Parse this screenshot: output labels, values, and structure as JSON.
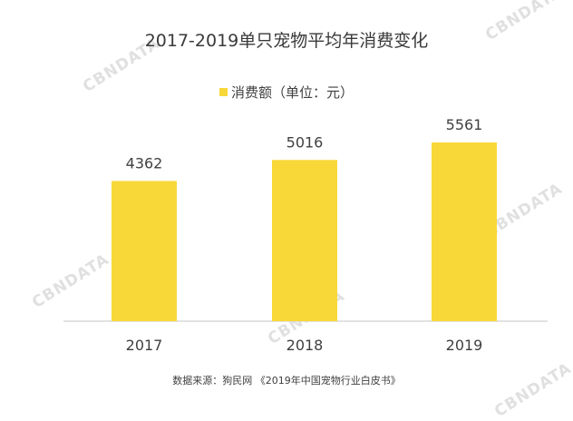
{
  "chart_data": {
    "type": "bar",
    "title": "2017-2019单只宠物平均年消费变化",
    "categories": [
      "2017",
      "2018",
      "2019"
    ],
    "series": [
      {
        "name": "消费额（单位：元）",
        "values": [
          4362,
          5016,
          5561
        ],
        "color": "#F8D838"
      }
    ],
    "data_labels": [
      "4362",
      "5016",
      "5561"
    ],
    "xlabel": "",
    "ylabel": "",
    "grid": false,
    "legend": "top-center",
    "source": "数据来源：狗民网 《2019年中国宠物行业白皮书》"
  },
  "watermark": "CBNDATA"
}
